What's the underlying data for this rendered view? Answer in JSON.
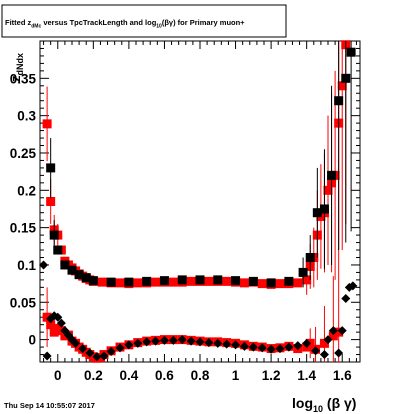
{
  "header": {
    "title_parts": {
      "p1": "Fitted  z",
      "p2": "dMc",
      "p3": "  versus TpcTrackLength and log",
      "p4": "10",
      "p5": "(βγ) for Primary muon+"
    },
    "timestamp": "Thu Sep 14 10:55:07 2017"
  },
  "chart_data": {
    "type": "scatter",
    "title": "Fitted z_dMc versus TpcTrackLength and log10(βγ) for Primary muon+",
    "xlabel": {
      "main": "log",
      "sub": "10",
      "tail": " (β γ)"
    },
    "ylabel": {
      "main": "z",
      "sub": "dNdx"
    },
    "xlim": [
      -0.1,
      1.7
    ],
    "ylim": [
      -0.03,
      0.4
    ],
    "x_ticks": [
      0,
      0.2,
      0.4,
      0.6,
      0.8,
      1,
      1.2,
      1.4,
      1.6
    ],
    "x_tick_labels": [
      "0",
      "0.2",
      "0.4",
      "0.6",
      "0.8",
      "1",
      "1.2",
      "1.4",
      "1.6"
    ],
    "y_ticks": [
      0,
      0.05,
      0.1,
      0.15,
      0.2,
      0.25,
      0.3,
      0.35
    ],
    "y_tick_labels": [
      "0",
      "0.05",
      "0.1",
      "0.15",
      "0.2",
      "0.25",
      "0.3",
      "0.35"
    ],
    "colors": {
      "red": "#ff0000",
      "black": "#000000"
    },
    "series": [
      {
        "color": "#ff0000",
        "marker": "square",
        "points": [
          {
            "x": -0.06,
            "y": 0.289,
            "err": 0.05
          },
          {
            "x": -0.04,
            "y": 0.185,
            "err": 0.03
          },
          {
            "x": -0.02,
            "y": 0.147,
            "err": 0.02
          },
          {
            "x": 0.0,
            "y": 0.14,
            "err": 0.015
          },
          {
            "x": 0.02,
            "y": 0.12
          },
          {
            "x": 0.04,
            "y": 0.105
          },
          {
            "x": 0.06,
            "y": 0.1
          },
          {
            "x": 0.08,
            "y": 0.096
          },
          {
            "x": 0.1,
            "y": 0.092
          },
          {
            "x": 0.12,
            "y": 0.088
          },
          {
            "x": 0.14,
            "y": 0.085
          },
          {
            "x": 0.16,
            "y": 0.082
          },
          {
            "x": 0.18,
            "y": 0.08
          },
          {
            "x": 0.2,
            "y": 0.078
          },
          {
            "x": 0.25,
            "y": 0.077
          },
          {
            "x": 0.3,
            "y": 0.076
          },
          {
            "x": 0.35,
            "y": 0.076
          },
          {
            "x": 0.4,
            "y": 0.075
          },
          {
            "x": 0.45,
            "y": 0.076
          },
          {
            "x": 0.5,
            "y": 0.076
          },
          {
            "x": 0.55,
            "y": 0.077
          },
          {
            "x": 0.6,
            "y": 0.077
          },
          {
            "x": 0.65,
            "y": 0.077
          },
          {
            "x": 0.7,
            "y": 0.077
          },
          {
            "x": 0.75,
            "y": 0.078
          },
          {
            "x": 0.8,
            "y": 0.078
          },
          {
            "x": 0.85,
            "y": 0.078
          },
          {
            "x": 0.9,
            "y": 0.078
          },
          {
            "x": 0.95,
            "y": 0.078
          },
          {
            "x": 1.0,
            "y": 0.077
          },
          {
            "x": 1.05,
            "y": 0.076
          },
          {
            "x": 1.1,
            "y": 0.077
          },
          {
            "x": 1.15,
            "y": 0.075
          },
          {
            "x": 1.2,
            "y": 0.074
          },
          {
            "x": 1.25,
            "y": 0.075
          },
          {
            "x": 1.3,
            "y": 0.075
          },
          {
            "x": 1.35,
            "y": 0.076
          },
          {
            "x": 1.4,
            "y": 0.08,
            "err": 0.02
          },
          {
            "x": 1.42,
            "y": 0.098,
            "err": 0.03
          },
          {
            "x": 1.44,
            "y": 0.11,
            "err": 0.04
          },
          {
            "x": 1.46,
            "y": 0.14,
            "err": 0.06
          },
          {
            "x": 1.48,
            "y": 0.165,
            "err": 0.07
          },
          {
            "x": 1.5,
            "y": 0.17,
            "err": 0.08
          },
          {
            "x": 1.52,
            "y": 0.2,
            "err": 0.1
          },
          {
            "x": 1.54,
            "y": 0.21,
            "err": 0.12
          },
          {
            "x": 1.56,
            "y": 0.22,
            "err": 0.14
          },
          {
            "x": 1.58,
            "y": 0.29,
            "err": 0.18
          },
          {
            "x": 1.6,
            "y": 0.34,
            "err": 0.22
          },
          {
            "x": 1.62,
            "y": 0.395,
            "err": 0.24
          },
          {
            "x": -0.06,
            "y": 0.03,
            "err": 0.04
          },
          {
            "x": -0.04,
            "y": 0.02
          },
          {
            "x": -0.02,
            "y": 0.01
          },
          {
            "x": 0.0,
            "y": 0.015
          },
          {
            "x": 0.02,
            "y": 0.012
          },
          {
            "x": 0.04,
            "y": 0.005
          },
          {
            "x": 0.06,
            "y": 0.006
          },
          {
            "x": 0.08,
            "y": -0.002
          },
          {
            "x": 0.1,
            "y": -0.005
          },
          {
            "x": 0.12,
            "y": -0.01
          },
          {
            "x": 0.14,
            "y": -0.013
          },
          {
            "x": 0.16,
            "y": -0.017
          },
          {
            "x": 0.18,
            "y": -0.02
          },
          {
            "x": 0.2,
            "y": -0.023
          },
          {
            "x": 0.22,
            "y": -0.025
          },
          {
            "x": 0.24,
            "y": -0.024
          },
          {
            "x": 0.26,
            "y": -0.02
          },
          {
            "x": 0.3,
            "y": -0.015
          },
          {
            "x": 0.35,
            "y": -0.01
          },
          {
            "x": 0.4,
            "y": -0.007
          },
          {
            "x": 0.45,
            "y": -0.004
          },
          {
            "x": 0.5,
            "y": -0.002
          },
          {
            "x": 0.55,
            "y": -0.001
          },
          {
            "x": 0.6,
            "y": 0.0
          },
          {
            "x": 0.65,
            "y": 0.0
          },
          {
            "x": 0.7,
            "y": 0.0
          },
          {
            "x": 0.75,
            "y": -0.001
          },
          {
            "x": 0.8,
            "y": -0.002
          },
          {
            "x": 0.85,
            "y": -0.003
          },
          {
            "x": 0.9,
            "y": -0.003
          },
          {
            "x": 0.95,
            "y": -0.004
          },
          {
            "x": 1.0,
            "y": -0.005
          },
          {
            "x": 1.05,
            "y": -0.007
          },
          {
            "x": 1.1,
            "y": -0.009
          },
          {
            "x": 1.15,
            "y": -0.01
          },
          {
            "x": 1.2,
            "y": -0.012
          },
          {
            "x": 1.25,
            "y": -0.011
          },
          {
            "x": 1.3,
            "y": -0.009
          },
          {
            "x": 1.35,
            "y": -0.012
          },
          {
            "x": 1.4,
            "y": -0.01
          },
          {
            "x": 1.42,
            "y": -0.005,
            "err": 0.02
          },
          {
            "x": 1.45,
            "y": -0.013,
            "err": 0.03
          },
          {
            "x": 1.5,
            "y": -0.005,
            "err": 0.05
          },
          {
            "x": 1.55,
            "y": 0.005,
            "err": 0.08
          },
          {
            "x": 1.58,
            "y": 0.01,
            "err": 0.1
          }
        ]
      },
      {
        "color": "#000000",
        "marker": "square",
        "points": [
          {
            "x": -0.04,
            "y": 0.23,
            "err": 0.04
          },
          {
            "x": -0.02,
            "y": 0.14,
            "err": 0.02
          },
          {
            "x": 0.0,
            "y": 0.12
          },
          {
            "x": 0.04,
            "y": 0.1
          },
          {
            "x": 0.08,
            "y": 0.093
          },
          {
            "x": 0.12,
            "y": 0.087
          },
          {
            "x": 0.16,
            "y": 0.083
          },
          {
            "x": 0.2,
            "y": 0.079
          },
          {
            "x": 0.3,
            "y": 0.077
          },
          {
            "x": 0.4,
            "y": 0.077
          },
          {
            "x": 0.5,
            "y": 0.078
          },
          {
            "x": 0.6,
            "y": 0.079
          },
          {
            "x": 0.7,
            "y": 0.08
          },
          {
            "x": 0.8,
            "y": 0.08
          },
          {
            "x": 0.9,
            "y": 0.08
          },
          {
            "x": 1.0,
            "y": 0.079
          },
          {
            "x": 1.1,
            "y": 0.078
          },
          {
            "x": 1.2,
            "y": 0.076
          },
          {
            "x": 1.3,
            "y": 0.078
          },
          {
            "x": 1.38,
            "y": 0.09,
            "err": 0.02
          },
          {
            "x": 1.42,
            "y": 0.11,
            "err": 0.03
          },
          {
            "x": 1.46,
            "y": 0.17,
            "err": 0.06
          },
          {
            "x": 1.5,
            "y": 0.175,
            "err": 0.08
          },
          {
            "x": 1.54,
            "y": 0.22,
            "err": 0.12
          },
          {
            "x": 1.58,
            "y": 0.32,
            "err": 0.2
          },
          {
            "x": 1.62,
            "y": 0.35,
            "err": 0.22
          },
          {
            "x": 1.65,
            "y": 0.385,
            "err": 0.24
          }
        ]
      },
      {
        "color": "#000000",
        "marker": "diamond",
        "points": [
          {
            "x": -0.08,
            "y": 0.1
          },
          {
            "x": -0.06,
            "y": -0.022
          },
          {
            "x": -0.04,
            "y": 0.028
          },
          {
            "x": -0.02,
            "y": 0.032
          },
          {
            "x": 0.0,
            "y": 0.03
          },
          {
            "x": 0.02,
            "y": 0.022
          },
          {
            "x": 0.04,
            "y": 0.012
          },
          {
            "x": 0.06,
            "y": 0.006
          },
          {
            "x": 0.08,
            "y": 0.0
          },
          {
            "x": 0.1,
            "y": -0.005
          },
          {
            "x": 0.14,
            "y": -0.012
          },
          {
            "x": 0.18,
            "y": -0.018
          },
          {
            "x": 0.22,
            "y": -0.023
          },
          {
            "x": 0.26,
            "y": -0.022
          },
          {
            "x": 0.3,
            "y": -0.016
          },
          {
            "x": 0.35,
            "y": -0.011
          },
          {
            "x": 0.4,
            "y": -0.007
          },
          {
            "x": 0.45,
            "y": -0.005
          },
          {
            "x": 0.5,
            "y": -0.003
          },
          {
            "x": 0.55,
            "y": -0.002
          },
          {
            "x": 0.6,
            "y": -0.001
          },
          {
            "x": 0.65,
            "y": -0.001
          },
          {
            "x": 0.7,
            "y": 0.0
          },
          {
            "x": 0.75,
            "y": -0.002
          },
          {
            "x": 0.8,
            "y": -0.003
          },
          {
            "x": 0.85,
            "y": -0.004
          },
          {
            "x": 0.9,
            "y": -0.005
          },
          {
            "x": 0.95,
            "y": -0.006
          },
          {
            "x": 1.0,
            "y": -0.007
          },
          {
            "x": 1.05,
            "y": -0.009
          },
          {
            "x": 1.1,
            "y": -0.01
          },
          {
            "x": 1.15,
            "y": -0.011
          },
          {
            "x": 1.2,
            "y": -0.013
          },
          {
            "x": 1.25,
            "y": -0.012
          },
          {
            "x": 1.3,
            "y": -0.01
          },
          {
            "x": 1.35,
            "y": -0.008
          },
          {
            "x": 1.4,
            "y": -0.005
          },
          {
            "x": 1.45,
            "y": -0.015
          },
          {
            "x": 1.5,
            "y": -0.02
          },
          {
            "x": 1.52,
            "y": 0.0
          },
          {
            "x": 1.55,
            "y": 0.012
          },
          {
            "x": 1.58,
            "y": -0.018
          },
          {
            "x": 1.6,
            "y": 0.012
          },
          {
            "x": 1.62,
            "y": 0.055
          },
          {
            "x": 1.64,
            "y": 0.07
          },
          {
            "x": 1.66,
            "y": 0.072
          }
        ]
      }
    ]
  }
}
